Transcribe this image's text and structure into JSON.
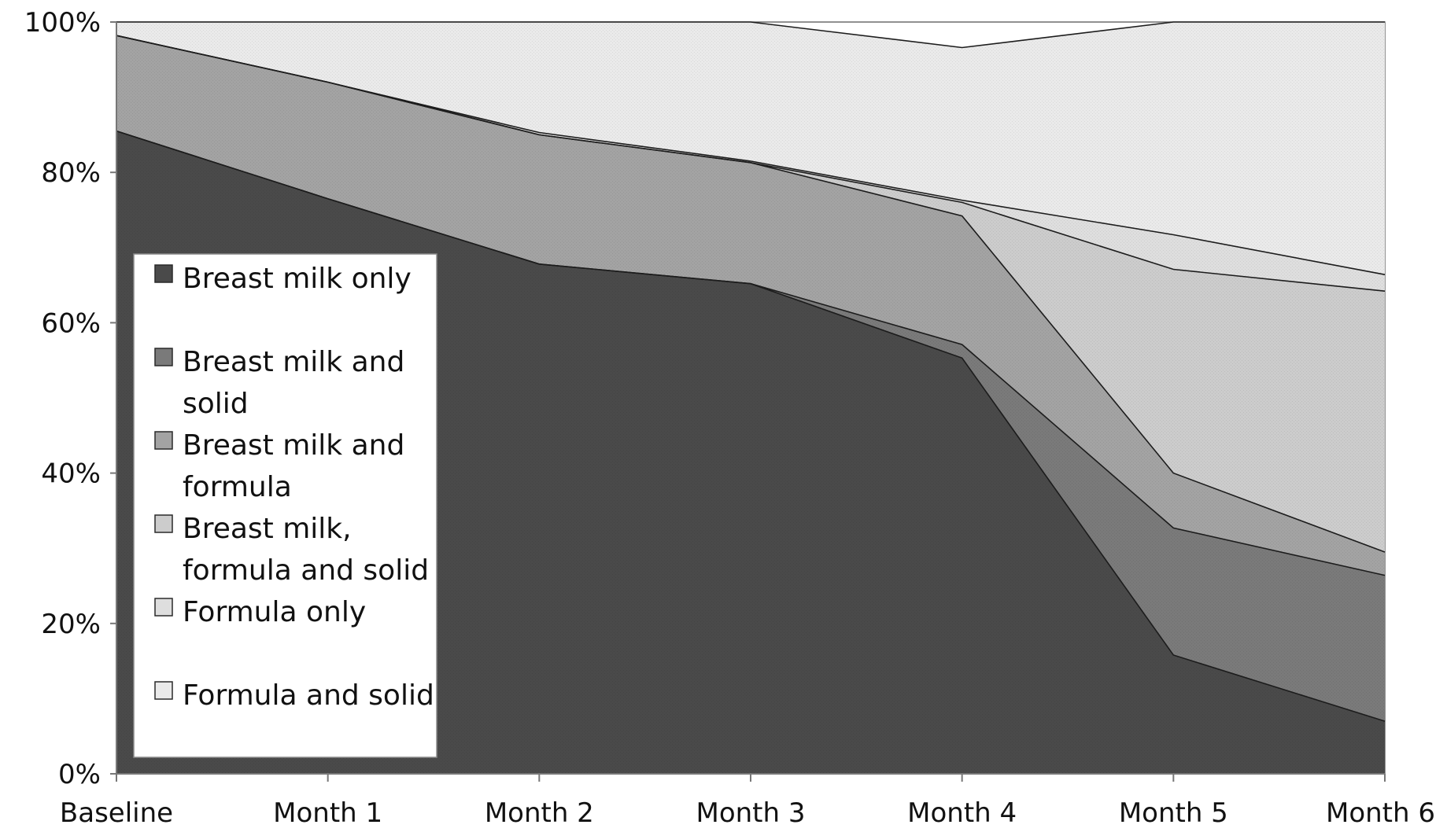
{
  "chart_data": {
    "type": "area",
    "stacked": true,
    "categories": [
      "Baseline",
      "Month 1",
      "Month 2",
      "Month 3",
      "Month 4",
      "Month 5",
      "Month 6"
    ],
    "y_ticks": [
      "0%",
      "20%",
      "40%",
      "60%",
      "80%",
      "100%"
    ],
    "ylim": [
      0,
      100
    ],
    "title": "",
    "xlabel": "",
    "ylabel": "",
    "legend_position": "left-inside",
    "series": [
      {
        "name": "Breast milk only",
        "legend_lines": [
          "Breast milk only"
        ],
        "values": [
          85.5,
          76.5,
          67.8,
          65.2,
          55.3,
          15.8,
          7.0
        ],
        "color": "#4a4a4a"
      },
      {
        "name": "Breast milk and solid",
        "legend_lines": [
          "Breast milk and",
          "solid"
        ],
        "values": [
          0.0,
          0.0,
          0.0,
          0.0,
          1.8,
          16.9,
          19.4
        ],
        "color": "#7a7a7a"
      },
      {
        "name": "Breast milk and formula",
        "legend_lines": [
          "Breast milk and",
          "formula"
        ],
        "values": [
          12.7,
          15.5,
          17.2,
          16.1,
          17.1,
          7.3,
          3.1
        ],
        "color": "#a3a3a3"
      },
      {
        "name": "Breast milk, formula and solid",
        "legend_lines": [
          "Breast milk,",
          "formula and solid"
        ],
        "values": [
          0.0,
          0.0,
          0.0,
          0.0,
          1.8,
          27.1,
          34.7
        ],
        "color": "#cccccc"
      },
      {
        "name": "Formula only",
        "legend_lines": [
          "Formula only"
        ],
        "values": [
          0.0,
          0.0,
          0.3,
          0.2,
          0.3,
          4.6,
          2.2
        ],
        "color": "#dedede"
      },
      {
        "name": "Formula and solid",
        "legend_lines": [
          "Formula and solid"
        ],
        "values": [
          1.8,
          8.0,
          14.7,
          18.5,
          20.3,
          28.3,
          33.6
        ],
        "color": "#eaeaea"
      }
    ]
  }
}
